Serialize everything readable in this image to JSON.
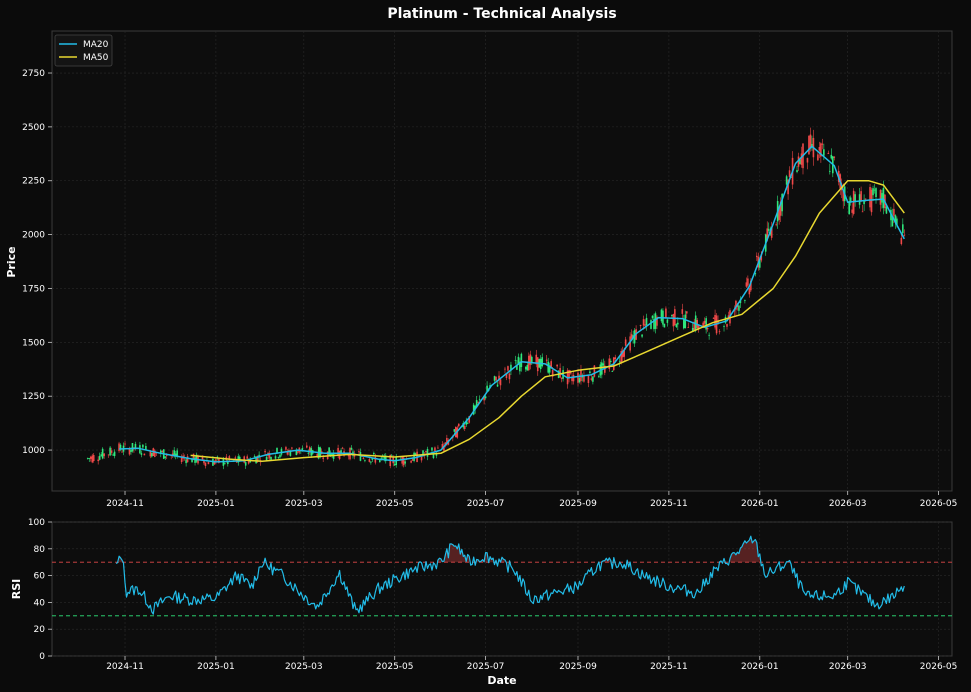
{
  "figure": {
    "title": "Platinum - Technical Analysis",
    "background": "#0b0b0b",
    "panel_background": "#0d0d0d",
    "grid_color": "#2a2a2a",
    "text_color": "#ffffff"
  },
  "chart_data": [
    {
      "type": "candlestick",
      "title": "Platinum - Technical Analysis",
      "xlabel": "",
      "ylabel": "Price",
      "x_ticks": [
        "2024-11",
        "2025-01",
        "2025-03",
        "2025-05",
        "2025-07",
        "2025-09",
        "2025-11",
        "2026-01",
        "2026-03",
        "2026-05"
      ],
      "y_ticks": [
        1000,
        1250,
        1500,
        1750,
        2000,
        2250,
        2500,
        2750
      ],
      "ylim": [
        810,
        2945
      ],
      "xlim": [
        "2024-09-13",
        "2026-05-10"
      ],
      "grid": true,
      "legend_position": "top-left",
      "colors": {
        "up": "#2ee87c",
        "down": "#f04848",
        "ma20": "#22bce8",
        "ma50": "#e8d830"
      },
      "series": [
        {
          "name": "MA20",
          "color": "#22bce8",
          "points": [
            [
              "2024-10-28",
              1005
            ],
            [
              "2024-11-10",
              1008
            ],
            [
              "2024-11-25",
              985
            ],
            [
              "2024-12-15",
              960
            ],
            [
              "2025-01-01",
              945
            ],
            [
              "2025-01-20",
              950
            ],
            [
              "2025-02-05",
              980
            ],
            [
              "2025-02-25",
              1000
            ],
            [
              "2025-03-15",
              985
            ],
            [
              "2025-04-01",
              985
            ],
            [
              "2025-04-20",
              958
            ],
            [
              "2025-05-01",
              950
            ],
            [
              "2025-05-15",
              965
            ],
            [
              "2025-06-01",
              1000
            ],
            [
              "2025-06-20",
              1150
            ],
            [
              "2025-07-05",
              1300
            ],
            [
              "2025-07-25",
              1410
            ],
            [
              "2025-08-10",
              1400
            ],
            [
              "2025-08-25",
              1335
            ],
            [
              "2025-09-10",
              1350
            ],
            [
              "2025-09-25",
              1400
            ],
            [
              "2025-10-10",
              1540
            ],
            [
              "2025-10-25",
              1615
            ],
            [
              "2025-11-10",
              1610
            ],
            [
              "2025-11-25",
              1570
            ],
            [
              "2025-12-10",
              1600
            ],
            [
              "2025-12-25",
              1760
            ],
            [
              "2026-01-10",
              2050
            ],
            [
              "2026-01-25",
              2330
            ],
            [
              "2026-02-05",
              2410
            ],
            [
              "2026-02-20",
              2320
            ],
            [
              "2026-03-01",
              2150
            ],
            [
              "2026-03-15",
              2160
            ],
            [
              "2026-03-25",
              2165
            ],
            [
              "2026-04-01",
              2070
            ],
            [
              "2026-04-08",
              1980
            ]
          ]
        },
        {
          "name": "MA50",
          "color": "#e8d830",
          "points": [
            [
              "2024-12-15",
              975
            ],
            [
              "2025-01-10",
              958
            ],
            [
              "2025-02-01",
              948
            ],
            [
              "2025-03-01",
              965
            ],
            [
              "2025-04-01",
              980
            ],
            [
              "2025-05-01",
              968
            ],
            [
              "2025-06-01",
              985
            ],
            [
              "2025-06-20",
              1050
            ],
            [
              "2025-07-10",
              1150
            ],
            [
              "2025-07-25",
              1250
            ],
            [
              "2025-08-10",
              1340
            ],
            [
              "2025-09-01",
              1370
            ],
            [
              "2025-09-25",
              1390
            ],
            [
              "2025-10-15",
              1450
            ],
            [
              "2025-11-10",
              1530
            ],
            [
              "2025-11-30",
              1590
            ],
            [
              "2025-12-20",
              1630
            ],
            [
              "2026-01-10",
              1750
            ],
            [
              "2026-01-25",
              1900
            ],
            [
              "2026-02-10",
              2100
            ],
            [
              "2026-03-01",
              2250
            ],
            [
              "2026-03-15",
              2250
            ],
            [
              "2026-03-25",
              2230
            ],
            [
              "2026-04-08",
              2100
            ]
          ]
        }
      ],
      "candles_note": "Daily OHLC candles (green up, red down) following the moving averages from about 2024-10-07 to 2026-04-08."
    },
    {
      "type": "line",
      "xlabel": "Date",
      "ylabel": "RSI",
      "x_ticks": [
        "2024-11",
        "2025-01",
        "2025-03",
        "2025-05",
        "2025-07",
        "2025-09",
        "2025-11",
        "2026-01",
        "2026-03",
        "2026-05"
      ],
      "y_ticks": [
        0,
        20,
        40,
        60,
        80,
        100
      ],
      "ylim": [
        0,
        100
      ],
      "grid": true,
      "overbought": 70,
      "oversold": 30,
      "colors": {
        "line": "#22bce8",
        "overbought": "#e04848",
        "oversold": "#2ee87c"
      },
      "series": [
        {
          "name": "RSI",
          "points": [
            [
              "2024-10-26",
              67
            ],
            [
              "2024-10-30",
              75
            ],
            [
              "2024-11-02",
              48
            ],
            [
              "2024-11-10",
              50
            ],
            [
              "2024-11-20",
              35
            ],
            [
              "2024-12-01",
              45
            ],
            [
              "2024-12-15",
              42
            ],
            [
              "2025-01-01",
              43
            ],
            [
              "2025-01-15",
              60
            ],
            [
              "2025-01-25",
              52
            ],
            [
              "2025-02-01",
              70
            ],
            [
              "2025-02-15",
              60
            ],
            [
              "2025-03-01",
              45
            ],
            [
              "2025-03-10",
              37
            ],
            [
              "2025-03-25",
              62
            ],
            [
              "2025-04-05",
              33
            ],
            [
              "2025-04-20",
              50
            ],
            [
              "2025-05-01",
              57
            ],
            [
              "2025-05-15",
              65
            ],
            [
              "2025-06-01",
              70
            ],
            [
              "2025-06-10",
              84
            ],
            [
              "2025-06-20",
              70
            ],
            [
              "2025-07-01",
              75
            ],
            [
              "2025-07-20",
              65
            ],
            [
              "2025-08-01",
              42
            ],
            [
              "2025-08-20",
              48
            ],
            [
              "2025-09-01",
              52
            ],
            [
              "2025-09-15",
              68
            ],
            [
              "2025-10-01",
              70
            ],
            [
              "2025-10-15",
              60
            ],
            [
              "2025-11-01",
              52
            ],
            [
              "2025-11-20",
              47
            ],
            [
              "2025-12-01",
              63
            ],
            [
              "2025-12-20",
              80
            ],
            [
              "2025-12-28",
              88
            ],
            [
              "2026-01-05",
              60
            ],
            [
              "2026-01-20",
              70
            ],
            [
              "2026-02-01",
              44
            ],
            [
              "2026-02-20",
              45
            ],
            [
              "2026-03-01",
              55
            ],
            [
              "2026-03-20",
              38
            ],
            [
              "2026-04-01",
              45
            ],
            [
              "2026-04-08",
              54
            ]
          ]
        }
      ]
    }
  ]
}
